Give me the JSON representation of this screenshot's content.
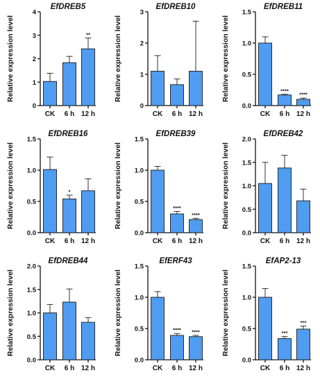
{
  "chart_data": [
    {
      "type": "bar",
      "title": "EfDREB5",
      "ylabel": "Relative expression level",
      "categories": [
        "CK",
        "6 h",
        "12 h"
      ],
      "values": [
        1.03,
        1.83,
        2.42
      ],
      "errors": [
        0.35,
        0.27,
        0.46
      ],
      "significance": [
        "",
        "",
        "**"
      ],
      "ylim": [
        0,
        4
      ],
      "yticks": [
        "0",
        "1",
        "2",
        "3",
        "4"
      ]
    },
    {
      "type": "bar",
      "title": "EfDREB10",
      "ylabel": "Relative expression level",
      "categories": [
        "CK",
        "6 h",
        "12 h"
      ],
      "values": [
        1.1,
        0.67,
        1.1
      ],
      "errors": [
        0.5,
        0.18,
        1.6
      ],
      "significance": [
        "",
        "",
        ""
      ],
      "ylim": [
        0,
        3
      ],
      "yticks": [
        "0",
        "1",
        "2",
        "3"
      ]
    },
    {
      "type": "bar",
      "title": "EfDREB11",
      "ylabel": "Relative expression level",
      "categories": [
        "CK",
        "6 h",
        "12 h"
      ],
      "values": [
        1.0,
        0.17,
        0.1
      ],
      "errors": [
        0.1,
        0.01,
        0.02
      ],
      "significance": [
        "",
        "****",
        "****"
      ],
      "ylim": [
        0,
        1.5
      ],
      "yticks": [
        "0.0",
        "0.5",
        "1.0",
        "1.5"
      ]
    },
    {
      "type": "bar",
      "title": "EfDREB16",
      "ylabel": "Relative expression level",
      "categories": [
        "CK",
        "6 h",
        "12 h"
      ],
      "values": [
        1.01,
        0.54,
        0.67
      ],
      "errors": [
        0.2,
        0.06,
        0.19
      ],
      "significance": [
        "",
        "*",
        ""
      ],
      "ylim": [
        0,
        1.5
      ],
      "yticks": [
        "0.0",
        "0.5",
        "1.0",
        "1.5"
      ]
    },
    {
      "type": "bar",
      "title": "EfDREB39",
      "ylabel": "Relative expression level",
      "categories": [
        "CK",
        "6 h",
        "12 h"
      ],
      "values": [
        1.0,
        0.3,
        0.21
      ],
      "errors": [
        0.06,
        0.04,
        0.02
      ],
      "significance": [
        "",
        "****",
        "****"
      ],
      "ylim": [
        0,
        1.5
      ],
      "yticks": [
        "0.0",
        "0.5",
        "1.0",
        "1.5"
      ]
    },
    {
      "type": "bar",
      "title": "EfDREB42",
      "ylabel": "Relative expression level",
      "categories": [
        "CK",
        "6 h",
        "12 h"
      ],
      "values": [
        1.05,
        1.38,
        0.68
      ],
      "errors": [
        0.45,
        0.27,
        0.25
      ],
      "significance": [
        "",
        "",
        ""
      ],
      "ylim": [
        0,
        2.0
      ],
      "yticks": [
        "0.0",
        "0.5",
        "1.0",
        "1.5",
        "2.0"
      ]
    },
    {
      "type": "bar",
      "title": "EfDREB44",
      "ylabel": "Relative expression level",
      "categories": [
        "CK",
        "6 h",
        "12 h"
      ],
      "values": [
        1.0,
        1.23,
        0.8
      ],
      "errors": [
        0.18,
        0.28,
        0.1
      ],
      "significance": [
        "",
        "",
        ""
      ],
      "ylim": [
        0,
        2.0
      ],
      "yticks": [
        "0.0",
        "0.5",
        "1.0",
        "1.5",
        "2.0"
      ]
    },
    {
      "type": "bar",
      "title": "EfERF43",
      "ylabel": "Relative expression level",
      "categories": [
        "CK",
        "6 h",
        "12 h"
      ],
      "values": [
        1.0,
        0.39,
        0.37
      ],
      "errors": [
        0.09,
        0.03,
        0.02
      ],
      "significance": [
        "",
        "****",
        "****"
      ],
      "ylim": [
        0,
        1.5
      ],
      "yticks": [
        "0.0",
        "0.5",
        "1.0",
        "1.5"
      ]
    },
    {
      "type": "bar",
      "title": "EfAP2-13",
      "ylabel": "Relative expression level",
      "categories": [
        "CK",
        "6 h",
        "12 h"
      ],
      "values": [
        1.0,
        0.34,
        0.49
      ],
      "errors": [
        0.14,
        0.03,
        0.05
      ],
      "significance": [
        "",
        "***",
        "***"
      ],
      "ylim": [
        0,
        1.5
      ],
      "yticks": [
        "0.0",
        "0.5",
        "1.0",
        "1.5"
      ]
    }
  ],
  "colors": {
    "bar_fill": "#4f9cf0",
    "bar_stroke": "#1a1a1a",
    "axis": "#111111"
  }
}
